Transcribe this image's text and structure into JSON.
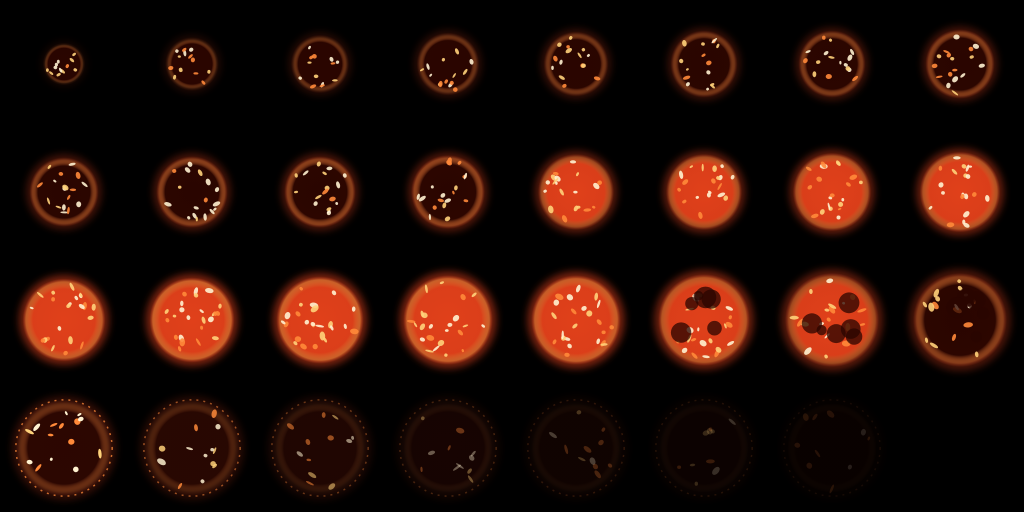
{
  "sprite_sheet": {
    "columns": 8,
    "rows": 4,
    "frame_count": 31,
    "background_color": "#000000",
    "palette": {
      "dark_core": "#2a0500",
      "ember": "#e0401a",
      "hot": "#ff8a3a",
      "glow": "#ffd27a",
      "white_hot": "#fff2d0"
    },
    "frames": [
      {
        "index": 1,
        "intensity": 0.15,
        "scale": 0.38
      },
      {
        "index": 2,
        "intensity": 0.22,
        "scale": 0.48
      },
      {
        "index": 3,
        "intensity": 0.28,
        "scale": 0.52
      },
      {
        "index": 4,
        "intensity": 0.32,
        "scale": 0.56
      },
      {
        "index": 5,
        "intensity": 0.38,
        "scale": 0.58
      },
      {
        "index": 6,
        "intensity": 0.42,
        "scale": 0.6
      },
      {
        "index": 7,
        "intensity": 0.46,
        "scale": 0.6
      },
      {
        "index": 8,
        "intensity": 0.5,
        "scale": 0.62
      },
      {
        "index": 9,
        "intensity": 0.5,
        "scale": 0.62
      },
      {
        "index": 10,
        "intensity": 0.54,
        "scale": 0.64
      },
      {
        "index": 11,
        "intensity": 0.56,
        "scale": 0.64
      },
      {
        "index": 12,
        "intensity": 0.6,
        "scale": 0.66
      },
      {
        "index": 13,
        "intensity": 0.66,
        "scale": 0.68
      },
      {
        "index": 14,
        "intensity": 0.7,
        "scale": 0.68
      },
      {
        "index": 15,
        "intensity": 0.74,
        "scale": 0.7
      },
      {
        "index": 16,
        "intensity": 0.78,
        "scale": 0.72
      },
      {
        "index": 17,
        "intensity": 0.9,
        "scale": 0.74
      },
      {
        "index": 18,
        "intensity": 1.0,
        "scale": 0.76
      },
      {
        "index": 19,
        "intensity": 1.0,
        "scale": 0.78
      },
      {
        "index": 20,
        "intensity": 0.98,
        "scale": 0.8
      },
      {
        "index": 21,
        "intensity": 0.94,
        "scale": 0.8
      },
      {
        "index": 22,
        "intensity": 0.82,
        "scale": 0.82
      },
      {
        "index": 23,
        "intensity": 0.68,
        "scale": 0.84
      },
      {
        "index": 24,
        "intensity": 0.55,
        "scale": 0.84
      },
      {
        "index": 25,
        "intensity": 0.38,
        "scale": 0.86
      },
      {
        "index": 26,
        "intensity": 0.28,
        "scale": 0.86
      },
      {
        "index": 27,
        "intensity": 0.18,
        "scale": 0.86
      },
      {
        "index": 28,
        "intensity": 0.12,
        "scale": 0.86
      },
      {
        "index": 29,
        "intensity": 0.08,
        "scale": 0.86
      },
      {
        "index": 30,
        "intensity": 0.06,
        "scale": 0.86
      },
      {
        "index": 31,
        "intensity": 0.04,
        "scale": 0.86
      }
    ]
  }
}
